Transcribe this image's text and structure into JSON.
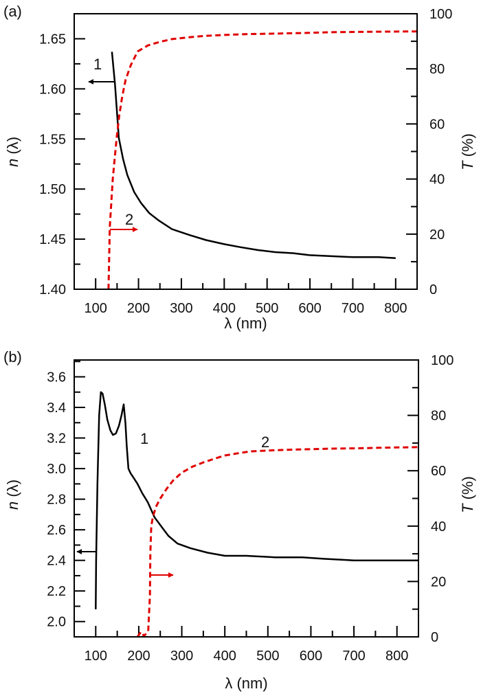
{
  "colors": {
    "n_curve": "#000000",
    "T_curve": "#e00000",
    "axis": "#000000"
  },
  "chart_data": [
    {
      "type": "line",
      "panel_label": "(a)",
      "xlabel": "λ (nm)",
      "ylabel_left": {
        "var": "n",
        "rest": " (λ)"
      },
      "ylabel_right": {
        "var": "T",
        "rest": " (%)"
      },
      "xlim": [
        50,
        850
      ],
      "ylim_left": [
        1.4,
        1.675
      ],
      "ylim_right": [
        0,
        100
      ],
      "x_ticks": [
        "100",
        "200",
        "300",
        "400",
        "500",
        "600",
        "700",
        "800"
      ],
      "y_left_ticks": [
        "1.40",
        "1.45",
        "1.50",
        "1.55",
        "1.60",
        "1.65"
      ],
      "y_right_ticks": [
        "0",
        "20",
        "40",
        "60",
        "80",
        "100"
      ],
      "grid": false,
      "series": [
        {
          "name": "1",
          "axis": "left",
          "style": "solid",
          "x": [
            138,
            145,
            154,
            164,
            174,
            190,
            206,
            225,
            246,
            278,
            320,
            358,
            400,
            438,
            480,
            519,
            560,
            599,
            650,
            700,
            760,
            800
          ],
          "y": [
            1.637,
            1.605,
            1.551,
            1.53,
            1.514,
            1.497,
            1.486,
            1.476,
            1.469,
            1.46,
            1.454,
            1.449,
            1.445,
            1.442,
            1.439,
            1.437,
            1.436,
            1.434,
            1.433,
            1.432,
            1.432,
            1.431
          ]
        },
        {
          "name": "2",
          "axis": "right",
          "style": "dashed",
          "x": [
            130,
            133,
            140,
            149,
            155,
            162,
            170,
            182,
            198,
            222,
            250,
            278,
            320,
            358,
            400,
            450,
            519,
            580,
            647,
            700,
            760,
            850
          ],
          "y": [
            0,
            22.7,
            40,
            55,
            63,
            70,
            76,
            81.3,
            86.3,
            88.5,
            89.8,
            90.8,
            91.5,
            92.0,
            92.3,
            92.6,
            92.8,
            93.0,
            93.3,
            93.4,
            93.5,
            93.6
          ]
        }
      ],
      "annotations": [
        {
          "text": "1",
          "arrow": "left",
          "points_to": "left-axis"
        },
        {
          "text": "2",
          "arrow": "right",
          "points_to": "right-axis"
        }
      ]
    },
    {
      "type": "line",
      "panel_label": "(b)",
      "xlabel": "λ (nm)",
      "ylabel_left": {
        "var": "n",
        "rest": " (λ)"
      },
      "ylabel_right": {
        "var": "T",
        "rest": " (%)"
      },
      "xlim": [
        50,
        850
      ],
      "ylim_left": [
        1.9,
        3.71
      ],
      "ylim_right": [
        0,
        100
      ],
      "x_ticks": [
        "100",
        "200",
        "300",
        "400",
        "500",
        "600",
        "700",
        "800"
      ],
      "y_left_ticks": [
        "2.0",
        "2.2",
        "2.4",
        "2.6",
        "2.8",
        "3.0",
        "3.2",
        "3.4",
        "3.6"
      ],
      "y_right_ticks": [
        "0",
        "20",
        "40",
        "60",
        "80",
        "100"
      ],
      "grid": false,
      "series": [
        {
          "name": "1",
          "axis": "left",
          "style": "solid",
          "x": [
            100,
            101,
            104,
            108,
            112,
            116,
            121,
            127,
            134,
            140,
            147,
            154,
            160,
            165,
            169,
            172,
            176,
            181,
            188,
            197,
            208,
            221,
            237,
            253,
            269,
            290,
            320,
            360,
            400,
            450,
            517,
            580,
            630,
            700,
            758,
            850
          ],
          "y": [
            2.08,
            2.4,
            2.9,
            3.35,
            3.5,
            3.49,
            3.42,
            3.32,
            3.25,
            3.22,
            3.23,
            3.28,
            3.35,
            3.42,
            3.3,
            3.15,
            3.0,
            2.97,
            2.94,
            2.9,
            2.84,
            2.78,
            2.68,
            2.62,
            2.56,
            2.51,
            2.48,
            2.45,
            2.43,
            2.43,
            2.42,
            2.42,
            2.41,
            2.4,
            2.4,
            2.4
          ]
        },
        {
          "name": "2",
          "axis": "right",
          "style": "dashed",
          "x": [
            197,
            205,
            212,
            222,
            226,
            227,
            229,
            233,
            240,
            250,
            265,
            280,
            300,
            325,
            350,
            375,
            400,
            430,
            460,
            500,
            550,
            600,
            650,
            700,
            760,
            800,
            850
          ],
          "y": [
            0,
            1.8,
            0.3,
            2,
            15,
            30,
            40,
            43.4,
            47,
            50,
            53.5,
            56.5,
            59.3,
            61.5,
            63,
            64.3,
            65.5,
            66.3,
            67,
            67.3,
            67.6,
            67.8,
            68.0,
            68.1,
            68.3,
            68.4,
            68.5
          ]
        }
      ],
      "annotations": [
        {
          "text": "1",
          "arrow": "left",
          "points_to": "left-axis"
        },
        {
          "text": "2",
          "arrow": "right",
          "points_to": "right-axis"
        }
      ]
    }
  ]
}
